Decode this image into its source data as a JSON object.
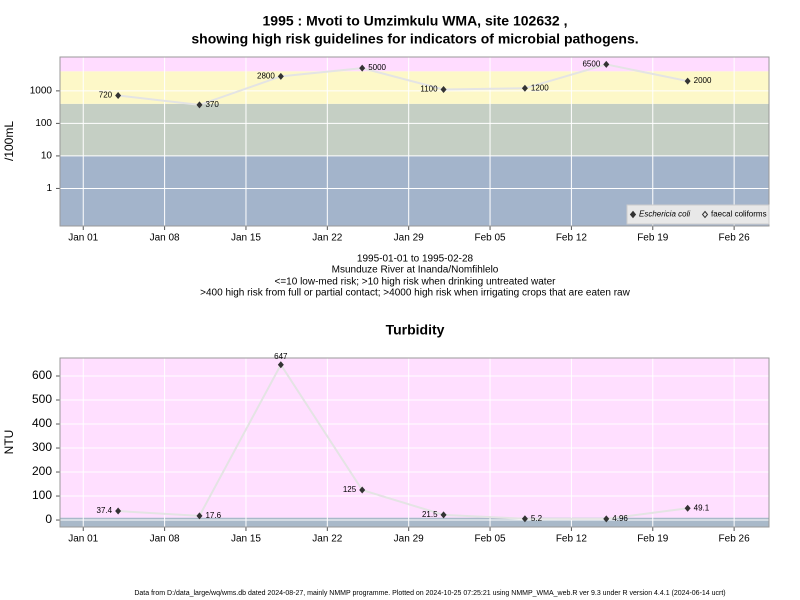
{
  "chart_data": [
    {
      "type": "line",
      "title": [
        "1995 : Mvoti to Umzimkulu WMA, site 102632 ,",
        "showing high risk guidelines for indicators of microbial pathogens."
      ],
      "subtitle": [
        "1995-01-01 to 1995-02-28",
        "Msunduze River at Inanda/Nomfihlelo",
        "<=10 low-med risk; >10 high risk when drinking untreated water",
        ">400 high risk from full or partial contact; >4000 high risk when irrigating crops that are eaten raw"
      ],
      "ylabel": "/100mL",
      "log_y": true,
      "grid": true,
      "legend": "bottom-right",
      "xlim": [
        "1994-12-30",
        "1995-03-01"
      ],
      "xticks": [
        {
          "value": "1995-01-01",
          "label": "Jan 01"
        },
        {
          "value": "1995-01-08",
          "label": "Jan 08"
        },
        {
          "value": "1995-01-15",
          "label": "Jan 15"
        },
        {
          "value": "1995-01-22",
          "label": "Jan 22"
        },
        {
          "value": "1995-01-29",
          "label": "Jan 29"
        },
        {
          "value": "1995-02-05",
          "label": "Feb 05"
        },
        {
          "value": "1995-02-12",
          "label": "Feb 12"
        },
        {
          "value": "1995-02-19",
          "label": "Feb 19"
        },
        {
          "value": "1995-02-26",
          "label": "Feb 26"
        }
      ],
      "ylim": [
        0.07,
        11000
      ],
      "yticks": [
        1,
        10,
        100,
        1000
      ],
      "bands": [
        {
          "from": 0.07,
          "to": 10,
          "color": "#a3b4cb"
        },
        {
          "from": 10,
          "to": 400,
          "color": "#c5cfc4"
        },
        {
          "from": 400,
          "to": 4000,
          "color": "#fdf8c8"
        },
        {
          "from": 4000,
          "to": 11000,
          "color": "#ffdcff"
        }
      ],
      "x": [
        "1995-01-04",
        "1995-01-11",
        "1995-01-18",
        "1995-01-25",
        "1995-02-01",
        "1995-02-08",
        "1995-02-15",
        "1995-02-22"
      ],
      "series": [
        {
          "name": "Eschericia coli",
          "color": "#333333",
          "values": [
            720,
            370,
            2800,
            5000,
            1100,
            1200,
            6500,
            2000
          ]
        },
        {
          "name": "faecal coliforms",
          "color": "#333333",
          "values": [
            null,
            null,
            null,
            null,
            null,
            null,
            null,
            null
          ]
        }
      ]
    },
    {
      "type": "line",
      "title": "Turbidity",
      "ylabel": "NTU",
      "log_y": false,
      "grid": true,
      "xlim": [
        "1994-12-30",
        "1995-03-01"
      ],
      "xticks": [
        {
          "value": "1995-01-01",
          "label": "Jan 01"
        },
        {
          "value": "1995-01-08",
          "label": "Jan 08"
        },
        {
          "value": "1995-01-15",
          "label": "Jan 15"
        },
        {
          "value": "1995-01-22",
          "label": "Jan 22"
        },
        {
          "value": "1995-01-29",
          "label": "Jan 29"
        },
        {
          "value": "1995-02-05",
          "label": "Feb 05"
        },
        {
          "value": "1995-02-12",
          "label": "Feb 12"
        },
        {
          "value": "1995-02-19",
          "label": "Feb 19"
        },
        {
          "value": "1995-02-26",
          "label": "Feb 26"
        }
      ],
      "ylim": [
        -29,
        675
      ],
      "yticks": [
        0,
        100,
        200,
        300,
        400,
        500,
        600
      ],
      "bands": [
        {
          "from": -29,
          "to": 10,
          "color": "#a9b9c9"
        },
        {
          "from": 10,
          "to": 675,
          "color": "#ffdfff"
        }
      ],
      "x": [
        "1995-01-04",
        "1995-01-11",
        "1995-01-18",
        "1995-01-25",
        "1995-02-01",
        "1995-02-08",
        "1995-02-15",
        "1995-02-22"
      ],
      "series": [
        {
          "color": "#333333",
          "values": [
            37.4,
            17.6,
            647,
            125,
            21.5,
            5.2,
            4.96,
            49.1
          ]
        }
      ]
    }
  ],
  "footer": "Data from D:/data_large/wq/wms.db dated 2024-08-27, mainly NMMP programme. Plotted on 2024-10-25 07:25:21 using NMMP_WMA_web.R ver 9.3 under R version 4.4.1 (2024-06-14 ucrt)"
}
